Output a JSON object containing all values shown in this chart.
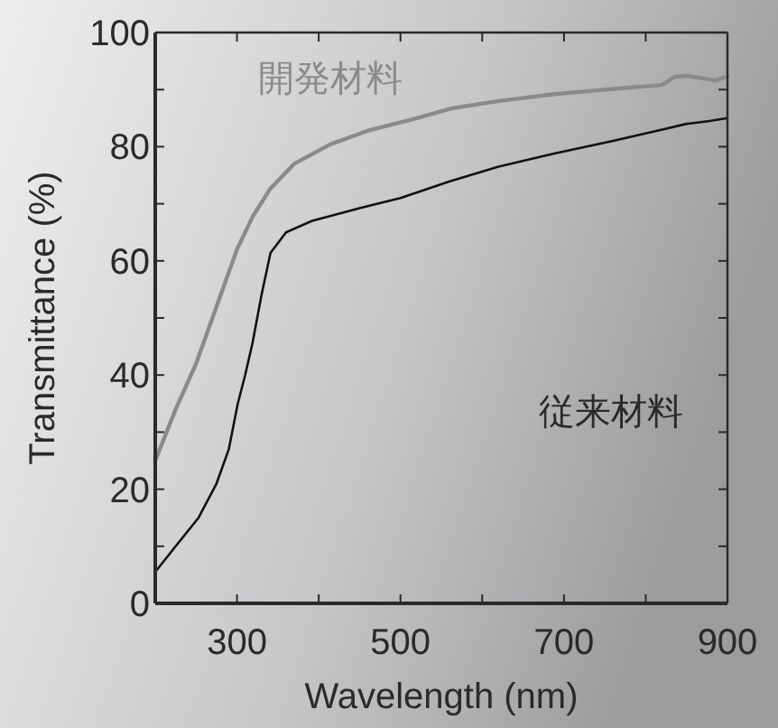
{
  "chart_data": {
    "type": "line",
    "xlabel": "Wavelength (nm)",
    "ylabel": "Transmittance (%)",
    "xlim": [
      200,
      900
    ],
    "ylim": [
      0,
      100
    ],
    "xticks": [
      {
        "value": 300,
        "label": "300"
      },
      {
        "value": 400,
        "label": null
      },
      {
        "value": 500,
        "label": "500"
      },
      {
        "value": 600,
        "label": null
      },
      {
        "value": 700,
        "label": "700"
      },
      {
        "value": 800,
        "label": null
      },
      {
        "value": 900,
        "label": "900"
      }
    ],
    "yticks": [
      0,
      {
        "value": 10,
        "label": null
      },
      20,
      {
        "value": 30,
        "label": null
      },
      40,
      {
        "value": 50,
        "label": null
      },
      60,
      {
        "value": 70,
        "label": null
      },
      80,
      {
        "value": 90,
        "label": null
      },
      100
    ],
    "series": [
      {
        "name": "開発材料",
        "color": "#8a8a8a",
        "x": [
          200,
          225,
          250,
          280,
          300,
          319,
          340,
          370,
          414,
          460,
          520,
          562,
          620,
          688,
          760,
          820,
          835,
          850,
          870,
          885,
          900
        ],
        "values": [
          25,
          34,
          42,
          54,
          62,
          67.7,
          72.5,
          77,
          80.4,
          82.8,
          85,
          86.7,
          88,
          89.2,
          90.1,
          90.8,
          92.2,
          92.4,
          92,
          91.6,
          92.3
        ]
      },
      {
        "name": "従来材料",
        "color": "#111111",
        "x": [
          200,
          225,
          253,
          275,
          290,
          301,
          310,
          319,
          330,
          341,
          360,
          392,
          452,
          500,
          562,
          620,
          688,
          760,
          820,
          850,
          878,
          900
        ],
        "values": [
          5.5,
          10,
          15,
          21,
          27,
          35,
          40,
          45.6,
          54,
          61.4,
          65,
          67,
          69.3,
          71,
          74,
          76.5,
          78.8,
          81,
          83,
          84,
          84.5,
          85
        ]
      }
    ]
  }
}
